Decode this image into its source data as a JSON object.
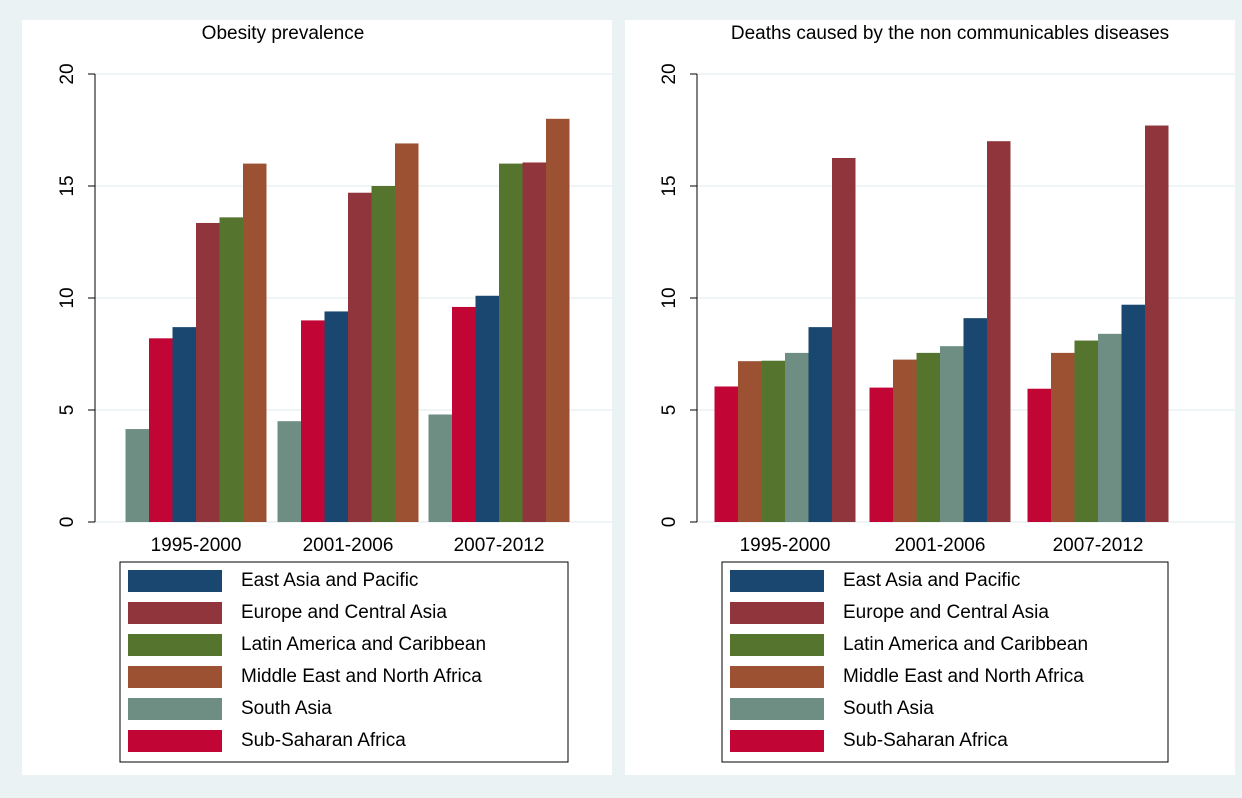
{
  "chart_data": [
    {
      "type": "bar",
      "title": "Obesity prevalence",
      "categories": [
        "1995-2000",
        "2001-2006",
        "2007-2012"
      ],
      "series": [
        {
          "name": "East Asia and Pacific",
          "color": "#1a476f",
          "values": [
            8.7,
            9.4,
            10.1
          ]
        },
        {
          "name": "Europe and Central Asia",
          "color": "#90353b",
          "values": [
            13.35,
            14.7,
            16.05
          ]
        },
        {
          "name": "Latin America and Caribbean",
          "color": "#55752f",
          "values": [
            13.6,
            15.0,
            16.0
          ]
        },
        {
          "name": "Middle East and North Africa",
          "color": "#9c5133",
          "values": [
            16.0,
            16.9,
            18.0
          ]
        },
        {
          "name": "South Asia",
          "color": "#6e8e84",
          "values": [
            4.15,
            4.5,
            4.8
          ]
        },
        {
          "name": "Sub-Saharan Africa",
          "color": "#c10534",
          "values": [
            8.2,
            9.0,
            9.6
          ]
        }
      ],
      "ylim": [
        0,
        20
      ],
      "yticks": [
        0,
        5,
        10,
        15,
        20
      ],
      "grid": true
    },
    {
      "type": "bar",
      "title": "Deaths caused by the non communicables diseases",
      "categories": [
        "1995-2000",
        "2001-2006",
        "2007-2012"
      ],
      "series": [
        {
          "name": "East Asia and Pacific",
          "color": "#1a476f",
          "values": [
            8.7,
            9.1,
            9.7
          ]
        },
        {
          "name": "Europe and Central Asia",
          "color": "#90353b",
          "values": [
            16.25,
            17.0,
            17.7
          ]
        },
        {
          "name": "Latin America and Caribbean",
          "color": "#55752f",
          "values": [
            7.2,
            7.55,
            8.1
          ]
        },
        {
          "name": "Middle East and North Africa",
          "color": "#9c5133",
          "values": [
            7.18,
            7.25,
            7.55
          ]
        },
        {
          "name": "South Asia",
          "color": "#6e8e84",
          "values": [
            7.55,
            7.85,
            8.4
          ]
        },
        {
          "name": "Sub-Saharan Africa",
          "color": "#c10534",
          "values": [
            6.05,
            6.0,
            5.95
          ]
        }
      ],
      "ylim": [
        0,
        20
      ],
      "yticks": [
        0,
        5,
        10,
        15,
        20
      ],
      "grid": true
    }
  ]
}
